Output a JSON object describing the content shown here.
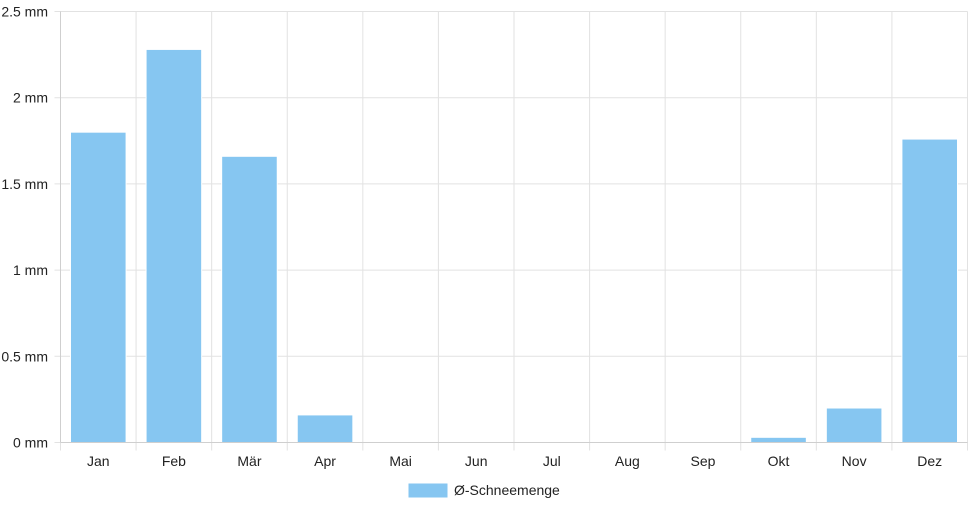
{
  "chart_data": {
    "type": "bar",
    "categories": [
      "Jan",
      "Feb",
      "Mär",
      "Apr",
      "Mai",
      "Jun",
      "Jul",
      "Aug",
      "Sep",
      "Okt",
      "Nov",
      "Dez"
    ],
    "series": [
      {
        "name": "Ø-Schneemenge",
        "values": [
          1.8,
          2.28,
          1.66,
          0.16,
          0,
          0,
          0,
          0,
          0,
          0.03,
          0.2,
          1.76
        ],
        "color": "#86c6f1"
      }
    ],
    "y_unit": "mm",
    "ylim": [
      0,
      2.5
    ],
    "y_ticks": [
      {
        "value": 0,
        "label": "0 mm"
      },
      {
        "value": 0.5,
        "label": "0.5 mm"
      },
      {
        "value": 1,
        "label": "1 mm"
      },
      {
        "value": 1.5,
        "label": "1.5 mm"
      },
      {
        "value": 2,
        "label": "2 mm"
      },
      {
        "value": 2.5,
        "label": "2.5 mm"
      }
    ],
    "grid": true,
    "legend_position": "bottom",
    "colors": {
      "grid": "#e2e2e2",
      "axis": "#cfcfcf",
      "text": "#222222"
    }
  }
}
